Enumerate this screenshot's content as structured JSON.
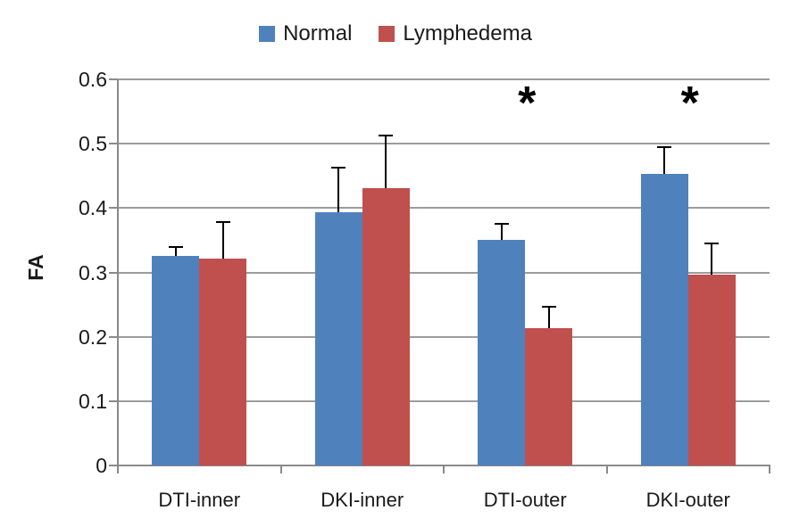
{
  "chart_data": {
    "type": "bar",
    "title": "",
    "ylabel": "FA",
    "xlabel": "",
    "categories": [
      "DTI-inner",
      "DKI-inner",
      "DTI-outer",
      "DKI-outer"
    ],
    "series": [
      {
        "name": "Normal",
        "color": "#4F81BD",
        "values": [
          0.325,
          0.393,
          0.351,
          0.453
        ],
        "errors_plus": [
          0.015,
          0.07,
          0.025,
          0.041
        ]
      },
      {
        "name": "Lymphedema",
        "color": "#C0504D",
        "values": [
          0.322,
          0.431,
          0.213,
          0.296
        ],
        "errors_plus": [
          0.056,
          0.082,
          0.034,
          0.049
        ]
      }
    ],
    "ylim": [
      0,
      0.6
    ],
    "yticks": [
      0,
      0.1,
      0.2,
      0.3,
      0.4,
      0.5,
      0.6
    ],
    "ytick_labels": [
      "0",
      "0.1",
      "0.2",
      "0.3",
      "0.4",
      "0.5",
      "0.6"
    ],
    "significance_markers": [
      "",
      "",
      "*",
      "*"
    ],
    "legend_position": "top",
    "grid": true,
    "error_bars": "plus-direction",
    "colors": {
      "grid": "#9C9C9C",
      "axis": "#8A8A8A",
      "error_bar": "#000000",
      "text": "#1a1a1a"
    }
  }
}
